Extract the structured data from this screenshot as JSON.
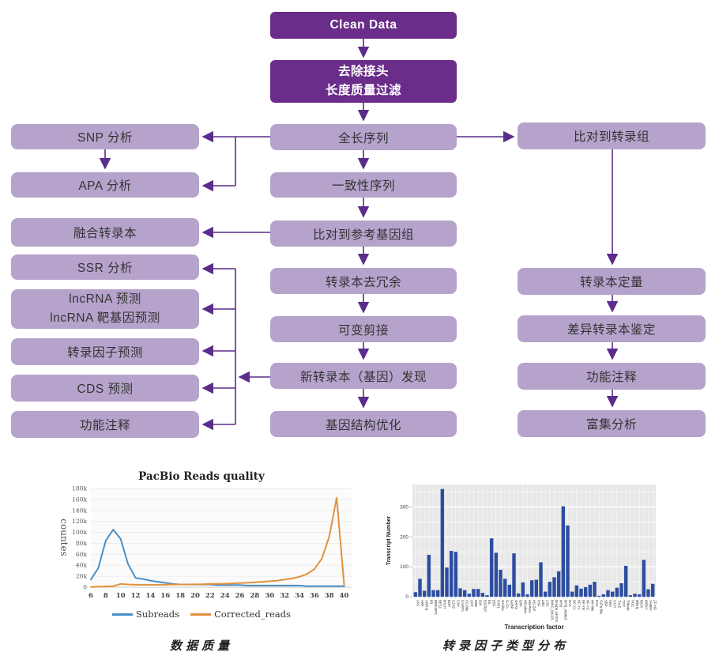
{
  "flowchart": {
    "colors": {
      "dark_box": "#6a2d8a",
      "light_box": "#b5a3cc",
      "arrow": "#5b2c8c",
      "box_text": "#333333",
      "dark_box_text": "#ffffff"
    },
    "nodes": {
      "clean_data": "Clean Data",
      "filter_line1": "去除接头",
      "filter_line2": "长度质量过滤",
      "full_length": "全长序列",
      "consensus": "一致性序列",
      "align_genome": "比对到参考基因组",
      "dedup": "转录本去冗余",
      "alt_splicing": "可变剪接",
      "novel_discovery": "新转录本（基因）发现",
      "gene_structure": "基因结构优化",
      "snp": "SNP 分析",
      "apa": "APA 分析",
      "fusion": "融合转录本",
      "ssr": "SSR 分析",
      "lncrna_line1": "lncRNA 预测",
      "lncrna_line2": "lncRNA 靶基因预测",
      "tf_prediction": "转录因子预测",
      "cds": "CDS 预测",
      "func_left": "功能注释",
      "align_transcriptome": "比对到转录组",
      "quantification": "转录本定量",
      "diff_transcript": "差异转录本鉴定",
      "func_right": "功能注释",
      "enrichment": "富集分析"
    },
    "edges": [
      {
        "from": "clean_data",
        "to": "filter"
      },
      {
        "from": "filter",
        "to": "full_length"
      },
      {
        "from": "full_length",
        "to": "consensus"
      },
      {
        "from": "consensus",
        "to": "align_genome"
      },
      {
        "from": "align_genome",
        "to": "dedup"
      },
      {
        "from": "dedup",
        "to": "alt_splicing"
      },
      {
        "from": "alt_splicing",
        "to": "novel_discovery"
      },
      {
        "from": "novel_discovery",
        "to": "gene_structure"
      },
      {
        "from": "full_length",
        "to": "snp"
      },
      {
        "from": "full_length",
        "to": "apa"
      },
      {
        "from": "snp",
        "to": "apa"
      },
      {
        "from": "align_genome",
        "to": "fusion"
      },
      {
        "from": "novel_discovery",
        "to": "ssr"
      },
      {
        "from": "novel_discovery",
        "to": "lncrna"
      },
      {
        "from": "novel_discovery",
        "to": "tf_prediction"
      },
      {
        "from": "novel_discovery",
        "to": "cds"
      },
      {
        "from": "novel_discovery",
        "to": "func_left"
      },
      {
        "from": "full_length",
        "to": "align_transcriptome"
      },
      {
        "from": "align_transcriptome",
        "to": "quantification"
      },
      {
        "from": "quantification",
        "to": "diff_transcript"
      },
      {
        "from": "diff_transcript",
        "to": "func_right"
      },
      {
        "from": "func_right",
        "to": "enrichment"
      }
    ]
  },
  "captions": {
    "left": "数据质量",
    "right": "转录因子类型分布"
  },
  "chart_data": [
    {
      "type": "line",
      "title": "PacBio Reads quality",
      "ylabel": "countes",
      "xlabel": "",
      "unit": "thousands",
      "x": [
        6,
        7,
        8,
        9,
        10,
        11,
        12,
        13,
        14,
        15,
        16,
        17,
        18,
        19,
        20,
        21,
        22,
        23,
        24,
        25,
        26,
        27,
        28,
        29,
        30,
        31,
        32,
        33,
        34,
        35,
        36,
        37,
        38,
        39,
        40
      ],
      "series": [
        {
          "name": "Subreads",
          "color": "#4a90c8",
          "values": [
            14,
            35,
            85,
            105,
            88,
            42,
            17,
            15,
            12,
            10,
            8,
            6,
            5,
            5,
            5,
            5,
            5,
            4,
            4,
            4,
            4,
            3,
            3,
            3,
            3,
            3,
            3,
            3,
            3,
            2,
            2,
            2,
            2,
            2,
            2
          ]
        },
        {
          "name": "Corrected_reads",
          "color": "#e2913e",
          "values": [
            0.5,
            1,
            1.5,
            2,
            6,
            5,
            4.5,
            4.5,
            4.5,
            4.5,
            4.5,
            5,
            5,
            5,
            5.5,
            5.5,
            6,
            6,
            6.5,
            7,
            7.5,
            8,
            9,
            10,
            11,
            12,
            14,
            16,
            19,
            24,
            33,
            52,
            92,
            163,
            4
          ]
        }
      ],
      "xticks": [
        6,
        8,
        10,
        12,
        14,
        16,
        18,
        20,
        22,
        24,
        26,
        28,
        30,
        32,
        34,
        36,
        38,
        40
      ],
      "ytick_values": [
        0,
        20,
        40,
        60,
        80,
        100,
        120,
        140,
        160,
        180
      ],
      "ytick_labels": [
        "0",
        "20k",
        "40k",
        "60k",
        "80k",
        "100k",
        "120k",
        "140k",
        "160k",
        "180k"
      ],
      "ylim": [
        0,
        180
      ],
      "legend_position": "bottom"
    },
    {
      "type": "bar",
      "title": "",
      "ylabel": "Transcript Number",
      "xlabel": "Transcription factor",
      "bar_color": "#2c4da0",
      "panel_bg": "#e8e8e8",
      "categories": [
        "AP2",
        "ARF",
        "ARR-B",
        "B3",
        "BBR-BPC",
        "BES1",
        "bHLH",
        "bZIP",
        "C2H2",
        "C3H",
        "CAMTA",
        "CO-like",
        "CPP",
        "DBB",
        "Dof",
        "E2F/DP",
        "EIL",
        "ERF",
        "FAR1",
        "G2-like",
        "GATA",
        "GeBP",
        "GRAS",
        "GRF",
        "HB-other",
        "HB-PHD",
        "HD-ZIP",
        "HSF",
        "LBD",
        "LSD",
        "MIKC_MADS",
        "M-type_MADS",
        "MYB",
        "MYB_related",
        "NAC",
        "NF-X1",
        "NF-YA",
        "NF-YB",
        "NF-YC",
        "Nin-like",
        "RAV",
        "S1Fa-like",
        "SBP",
        "SRS",
        "STAT",
        "TALE",
        "TCP",
        "Trihelix",
        "VOZ",
        "Whirly",
        "WOX",
        "WRKY",
        "YABBY",
        "ZF-HD"
      ],
      "values": [
        15,
        60,
        20,
        140,
        22,
        22,
        360,
        98,
        153,
        150,
        28,
        22,
        10,
        26,
        26,
        13,
        5,
        195,
        147,
        90,
        60,
        40,
        145,
        11,
        48,
        8,
        55,
        57,
        115,
        17,
        50,
        65,
        85,
        302,
        238,
        17,
        38,
        27,
        32,
        40,
        50,
        3,
        8,
        22,
        17,
        30,
        45,
        103,
        5,
        10,
        8,
        123,
        25,
        43
      ],
      "ytick_values": [
        0,
        100,
        200,
        300
      ],
      "ytick_minor": [
        50,
        150,
        250,
        350
      ],
      "ylim": [
        0,
        375
      ],
      "grid": "white-on-gray"
    }
  ]
}
